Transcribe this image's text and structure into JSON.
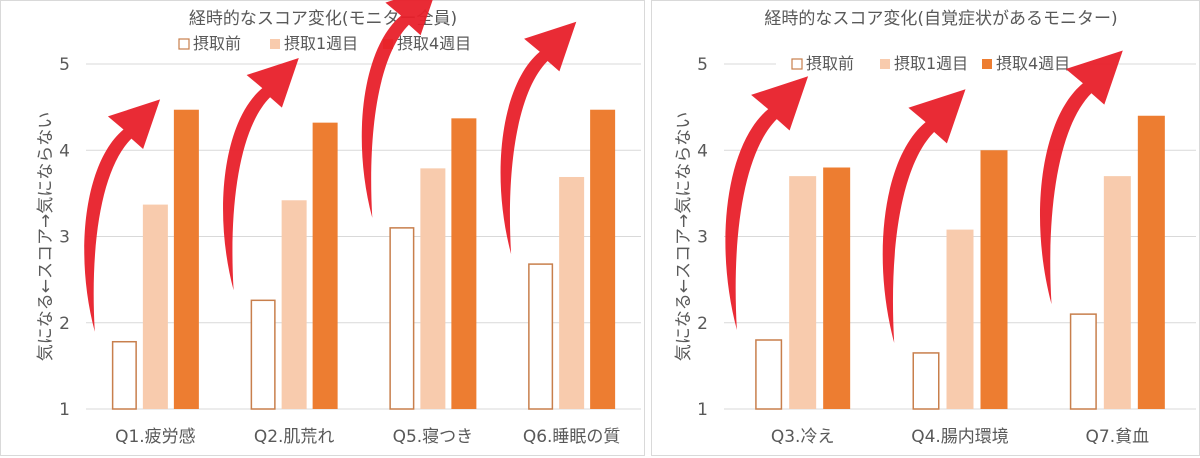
{
  "colors": {
    "before_stroke": "#c87f4c",
    "week1_fill": "#f8cbad",
    "week4_fill": "#ed7d31",
    "gridline": "#d9d9d9",
    "text": "#595959",
    "arrow": "#e8202a"
  },
  "icons": [
    "red-curved-arrow"
  ],
  "chart_data": [
    {
      "type": "bar",
      "title": "経時的なスコア変化(モニター全員)",
      "ylabel": "気になる←スコア→気にならない",
      "xlabel": "",
      "ylim": [
        1,
        5
      ],
      "yticks": [
        "1",
        "2",
        "3",
        "4",
        "5"
      ],
      "grid": true,
      "legend_position": "top",
      "categories": [
        "Q1.疲労感",
        "Q2.肌荒れ",
        "Q5.寝つき",
        "Q6.睡眠の質"
      ],
      "series": [
        {
          "name": "摂取前",
          "values": [
            1.78,
            2.26,
            3.1,
            2.68
          ]
        },
        {
          "name": "摂取1週目",
          "values": [
            3.37,
            3.42,
            3.79,
            3.69
          ]
        },
        {
          "name": "摂取4週目",
          "values": [
            4.47,
            4.32,
            4.37,
            4.47
          ]
        }
      ]
    },
    {
      "type": "bar",
      "title": "経時的なスコア変化(自覚症状があるモニター)",
      "ylabel": "気になる←スコア→気にならない",
      "xlabel": "",
      "ylim": [
        1,
        5
      ],
      "yticks": [
        "1",
        "2",
        "3",
        "4",
        "5"
      ],
      "grid": true,
      "legend_position": "top",
      "categories": [
        "Q3.冷え",
        "Q4.腸内環境",
        "Q7.貧血"
      ],
      "series": [
        {
          "name": "摂取前",
          "values": [
            1.8,
            1.65,
            2.1
          ]
        },
        {
          "name": "摂取1週目",
          "values": [
            3.7,
            3.08,
            3.7
          ]
        },
        {
          "name": "摂取4週目",
          "values": [
            3.8,
            4.0,
            4.4
          ]
        }
      ]
    }
  ]
}
